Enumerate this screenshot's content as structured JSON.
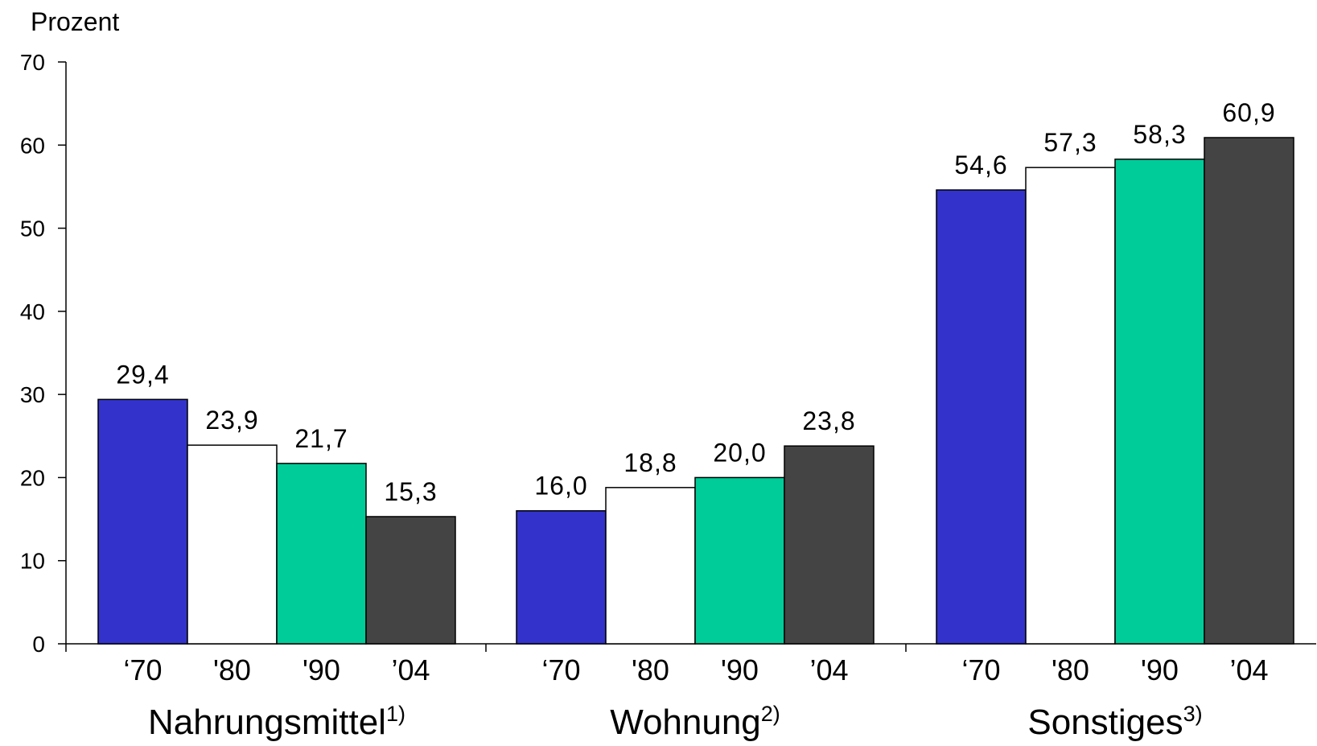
{
  "chart_data": {
    "type": "bar",
    "ylabel": "Prozent",
    "ylim": [
      0,
      70
    ],
    "yticks": [
      0,
      10,
      20,
      30,
      40,
      50,
      60,
      70
    ],
    "grid": false,
    "legend": "none",
    "categories": [
      {
        "name": "Nahrungsmittel",
        "note": "1)",
        "bars": [
          {
            "x_label": "‘70",
            "value": 29.4,
            "label": "29,4",
            "color": "#3333cc"
          },
          {
            "x_label": "'80",
            "value": 23.9,
            "label": "23,9",
            "color": "#ffffff"
          },
          {
            "x_label": "'90",
            "value": 21.7,
            "label": "21,7",
            "color": "#00cc99"
          },
          {
            "x_label": "’04",
            "value": 15.3,
            "label": "15,3",
            "color": "#444444"
          }
        ]
      },
      {
        "name": "Wohnung",
        "note": "2)",
        "bars": [
          {
            "x_label": "‘70",
            "value": 16.0,
            "label": "16,0",
            "color": "#3333cc"
          },
          {
            "x_label": "'80",
            "value": 18.8,
            "label": "18,8",
            "color": "#ffffff"
          },
          {
            "x_label": "'90",
            "value": 20.0,
            "label": "20,0",
            "color": "#00cc99"
          },
          {
            "x_label": "’04",
            "value": 23.8,
            "label": "23,8",
            "color": "#444444"
          }
        ]
      },
      {
        "name": "Sonstiges",
        "note": "3)",
        "bars": [
          {
            "x_label": "‘70",
            "value": 54.6,
            "label": "54,6",
            "color": "#3333cc"
          },
          {
            "x_label": "'80",
            "value": 57.3,
            "label": "57,3",
            "color": "#ffffff"
          },
          {
            "x_label": "'90",
            "value": 58.3,
            "label": "58,3",
            "color": "#00cc99"
          },
          {
            "x_label": "’04",
            "value": 60.9,
            "label": "60,9",
            "color": "#444444"
          }
        ]
      }
    ]
  }
}
